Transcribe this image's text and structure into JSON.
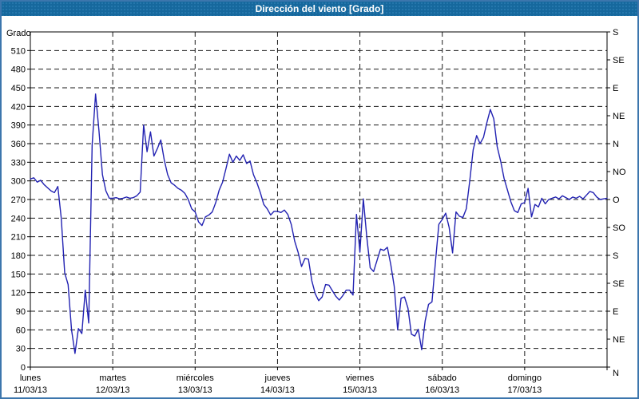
{
  "window": {
    "title": "Dirección del viento [Grado]"
  },
  "chart_data": {
    "type": "line",
    "title": "Dirección del viento [Grado]",
    "ylabel": "Grado",
    "ylim": [
      0,
      540
    ],
    "y_left_tick_step": 30,
    "y_left_tick_labels": [
      "0",
      "30",
      "60",
      "90",
      "120",
      "150",
      "180",
      "210",
      "240",
      "270",
      "300",
      "330",
      "360",
      "390",
      "420",
      "450",
      "480",
      "510"
    ],
    "y_right_tick_step": 45,
    "y_right_labels_bottom_to_top": [
      "N",
      "NE",
      "E",
      "SE",
      "S",
      "SO",
      "O",
      "NO",
      "N",
      "NE",
      "E",
      "SE",
      "S"
    ],
    "corner_right_label": "N",
    "grid": {
      "horizontal_every": 30,
      "vertical_every_day": true,
      "style": "dashed"
    },
    "legend_position": "none",
    "x_days": [
      {
        "name": "lunes",
        "date": "11/03/13"
      },
      {
        "name": "martes",
        "date": "12/03/13"
      },
      {
        "name": "miércoles",
        "date": "13/03/13"
      },
      {
        "name": "jueves",
        "date": "14/03/13"
      },
      {
        "name": "viernes",
        "date": "15/03/13"
      },
      {
        "name": "sábado",
        "date": "16/03/13"
      },
      {
        "name": "domingo",
        "date": "17/03/13"
      }
    ],
    "x_hours_per_point": 1,
    "series": [
      {
        "name": "Dirección del viento",
        "color": "#2222b2",
        "values": [
          303,
          305,
          298,
          301,
          294,
          289,
          284,
          281,
          291,
          240,
          152,
          133,
          60,
          22,
          62,
          54,
          124,
          71,
          358,
          440,
          380,
          310,
          284,
          272,
          272,
          273,
          271,
          272,
          274,
          272,
          273,
          276,
          282,
          390,
          347,
          379,
          340,
          352,
          366,
          334,
          310,
          297,
          293,
          288,
          285,
          280,
          270,
          255,
          250,
          234,
          228,
          242,
          245,
          250,
          265,
          285,
          298,
          320,
          343,
          330,
          340,
          333,
          342,
          328,
          332,
          310,
          297,
          281,
          262,
          255,
          245,
          251,
          251,
          249,
          253,
          246,
          230,
          203,
          185,
          162,
          175,
          174,
          139,
          118,
          107,
          113,
          133,
          132,
          123,
          114,
          108,
          115,
          124,
          124,
          116,
          246,
          185,
          271,
          210,
          160,
          154,
          172,
          190,
          188,
          193,
          165,
          130,
          60,
          111,
          113,
          95,
          53,
          50,
          61,
          28,
          74,
          101,
          105,
          169,
          230,
          238,
          248,
          225,
          184,
          250,
          243,
          241,
          255,
          300,
          350,
          373,
          360,
          370,
          394,
          415,
          400,
          355,
          332,
          304,
          285,
          266,
          252,
          249,
          263,
          265,
          288,
          242,
          262,
          258,
          272,
          263,
          270,
          272,
          274,
          271,
          276,
          273,
          270,
          274,
          272,
          275,
          271,
          277,
          283,
          281,
          274,
          270,
          271,
          272
        ]
      }
    ]
  },
  "colors": {
    "titlebar_bg": "#16689d",
    "window_border": "#3c76ad",
    "line": "#2222b2",
    "grid": "#1a1a1a",
    "axis": "#000000",
    "text": "#000000"
  }
}
